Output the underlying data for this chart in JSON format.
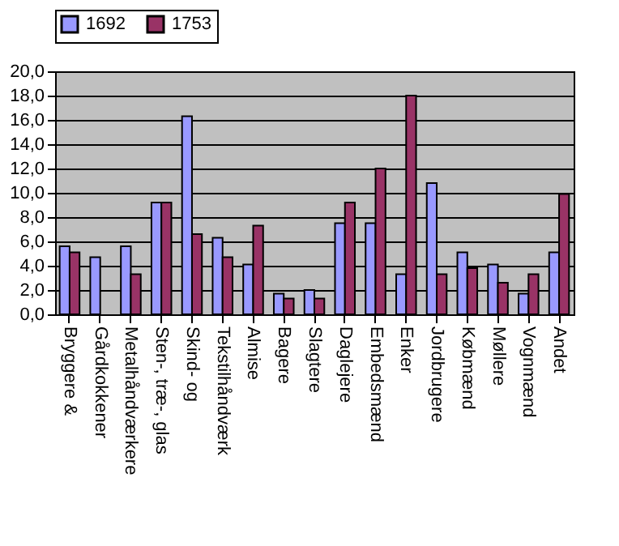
{
  "chart_data": {
    "type": "bar",
    "categories": [
      "Bryggere &",
      "Gårdkokkener",
      "Metalhåndværkere",
      "Sten-, træ-, glas",
      "Skind- og",
      "Tekstilhåndværk",
      "Almise",
      "Bagere",
      "Slagtere",
      "Daglejere",
      "Embedsmænd",
      "Enker",
      "Jordbrugere",
      "Købmænd",
      "Møllere",
      "Vognmænd",
      "Andet"
    ],
    "series": [
      {
        "name": "1692",
        "color": "#9999ff",
        "values": [
          5.6,
          4.7,
          5.6,
          9.2,
          16.3,
          6.3,
          4.1,
          1.7,
          2.0,
          7.5,
          7.5,
          3.3,
          10.8,
          5.1,
          4.1,
          1.7,
          5.1
        ]
      },
      {
        "name": "1753",
        "color": "#993366",
        "values": [
          5.1,
          null,
          3.3,
          9.2,
          6.6,
          4.7,
          7.3,
          1.3,
          1.3,
          9.2,
          12.0,
          18.0,
          3.3,
          3.8,
          2.6,
          3.3,
          9.9
        ]
      }
    ],
    "ylim": [
      0,
      20
    ],
    "yticks": [
      {
        "value": 0,
        "label": "0,0"
      },
      {
        "value": 2,
        "label": "2,0"
      },
      {
        "value": 4,
        "label": "4,0"
      },
      {
        "value": 6,
        "label": "6,0"
      },
      {
        "value": 8,
        "label": "8,0"
      },
      {
        "value": 10,
        "label": "10,0"
      },
      {
        "value": 12,
        "label": "12,0"
      },
      {
        "value": 14,
        "label": "14,0"
      },
      {
        "value": 16,
        "label": "16,0"
      },
      {
        "value": 18,
        "label": "18,0"
      },
      {
        "value": 20,
        "label": "20,0"
      }
    ],
    "grid": "y",
    "legend": "top"
  }
}
